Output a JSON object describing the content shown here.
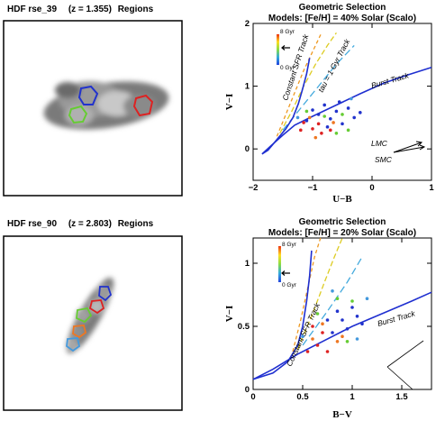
{
  "panels": [
    {
      "image_title_prefix": "HDF rse_39",
      "image_title_z": "(z = 1.355)",
      "image_title_suffix": "Regions",
      "chart_title": "Geometric Selection",
      "chart_subtitle": "Models: [Fe/H] = 40% Solar (Scalo)"
    },
    {
      "image_title_prefix": "HDF rse_90",
      "image_title_z": "(z = 2.803)",
      "image_title_suffix": "Regions",
      "chart_title": "Geometric Selection",
      "chart_subtitle": "Models: [Fe/H] = 20% Solar (Scalo)"
    }
  ],
  "colors": {
    "track": "#1f2fd0",
    "region_blue": "#2233cc",
    "region_red": "#dd2222",
    "region_green": "#66cc33",
    "region_orange": "#ee7722",
    "region_lightblue": "#4499dd"
  },
  "chart_data": [
    {
      "type": "scatter",
      "title": "Geometric Selection",
      "subtitle": "Models: [Fe/H] = 40% Solar (Scalo)",
      "xlabel": "U−B",
      "ylabel": "V−I",
      "xlim": [
        -2,
        1
      ],
      "ylim": [
        -0.5,
        2
      ],
      "xticks": [
        -2,
        -1,
        0,
        1
      ],
      "xtick_labels": [
        "−2",
        "−1",
        "0",
        "1"
      ],
      "yticks": [
        0,
        1,
        2
      ],
      "ytick_labels": [
        "0",
        "1",
        "2"
      ],
      "colorbar": {
        "top": "8 Gyr",
        "bottom": "0 Gyr"
      },
      "annotations": {
        "constant_sfr": "Constant SFR Track",
        "tau": "tau = 1 Gyr Track",
        "burst": "Burst Track",
        "lmc": "LMC",
        "smc": "SMC"
      },
      "burst_track": [
        [
          -1.85,
          -0.08
        ],
        [
          -1.7,
          0.05
        ],
        [
          -1.5,
          0.22
        ],
        [
          -1.3,
          0.38
        ],
        [
          -1.0,
          0.52
        ],
        [
          -0.6,
          0.7
        ],
        [
          -0.2,
          0.88
        ],
        [
          0.2,
          1.05
        ],
        [
          0.6,
          1.18
        ],
        [
          1.0,
          1.3
        ]
      ],
      "constant_sfr_track": [
        [
          -1.85,
          -0.08
        ],
        [
          -1.75,
          -0.02
        ],
        [
          -1.6,
          0.15
        ],
        [
          -1.45,
          0.32
        ],
        [
          -1.33,
          0.5
        ],
        [
          -1.24,
          0.72
        ],
        [
          -1.17,
          0.95
        ],
        [
          -1.1,
          1.2
        ],
        [
          -1.05,
          1.45
        ]
      ],
      "tau_tracks": [
        [
          [
            -1.6,
            0.2
          ],
          [
            -1.45,
            0.55
          ],
          [
            -1.3,
            0.9
          ],
          [
            -1.15,
            1.25
          ],
          [
            -1.0,
            1.55
          ],
          [
            -0.85,
            1.85
          ]
        ],
        [
          [
            -1.55,
            0.25
          ],
          [
            -1.35,
            0.6
          ],
          [
            -1.15,
            1.0
          ],
          [
            -0.95,
            1.35
          ],
          [
            -0.75,
            1.65
          ],
          [
            -0.6,
            1.85
          ]
        ],
        [
          [
            -1.5,
            0.3
          ],
          [
            -1.2,
            0.65
          ],
          [
            -0.9,
            1.0
          ],
          [
            -0.6,
            1.35
          ],
          [
            -0.3,
            1.65
          ]
        ]
      ],
      "points": [
        {
          "x": -1.0,
          "y": 0.62,
          "c": "#2233cc"
        },
        {
          "x": -0.9,
          "y": 0.55,
          "c": "#2233cc"
        },
        {
          "x": -0.8,
          "y": 0.7,
          "c": "#2233cc"
        },
        {
          "x": -0.7,
          "y": 0.48,
          "c": "#2233cc"
        },
        {
          "x": -0.6,
          "y": 0.6,
          "c": "#2233cc"
        },
        {
          "x": -0.5,
          "y": 0.4,
          "c": "#2233cc"
        },
        {
          "x": -0.4,
          "y": 0.65,
          "c": "#2233cc"
        },
        {
          "x": -0.3,
          "y": 0.5,
          "c": "#2233cc"
        },
        {
          "x": -0.2,
          "y": 0.58,
          "c": "#2233cc"
        },
        {
          "x": -1.1,
          "y": 0.45,
          "c": "#2233cc"
        },
        {
          "x": -0.75,
          "y": 0.35,
          "c": "#2233cc"
        },
        {
          "x": -0.55,
          "y": 0.75,
          "c": "#2233cc"
        },
        {
          "x": -1.15,
          "y": 0.42,
          "c": "#dd2222"
        },
        {
          "x": -1.0,
          "y": 0.32,
          "c": "#dd2222"
        },
        {
          "x": -0.9,
          "y": 0.4,
          "c": "#dd2222"
        },
        {
          "x": -0.85,
          "y": 0.25,
          "c": "#dd2222"
        },
        {
          "x": -1.2,
          "y": 0.3,
          "c": "#dd2222"
        },
        {
          "x": -0.7,
          "y": 0.3,
          "c": "#dd2222"
        },
        {
          "x": -0.95,
          "y": 0.18,
          "c": "#ee7722"
        },
        {
          "x": -1.05,
          "y": 0.5,
          "c": "#ee7722"
        },
        {
          "x": -0.65,
          "y": 0.42,
          "c": "#ee7722"
        },
        {
          "x": -1.1,
          "y": 0.6,
          "c": "#66cc33"
        },
        {
          "x": -0.8,
          "y": 0.52,
          "c": "#66cc33"
        },
        {
          "x": -0.6,
          "y": 0.25,
          "c": "#66cc33"
        },
        {
          "x": -0.4,
          "y": 0.3,
          "c": "#66cc33"
        },
        {
          "x": -0.5,
          "y": 0.55,
          "c": "#66cc33"
        },
        {
          "x": -1.25,
          "y": 0.5,
          "c": "#4499dd"
        },
        {
          "x": -0.35,
          "y": 0.8,
          "c": "#4499dd"
        }
      ]
    },
    {
      "type": "scatter",
      "title": "Geometric Selection",
      "subtitle": "Models: [Fe/H] = 20% Solar (Scalo)",
      "xlabel": "B−V",
      "ylabel": "V−I",
      "xlim": [
        0,
        1.8
      ],
      "ylim": [
        0,
        1.2
      ],
      "xticks": [
        0,
        0.5,
        1,
        1.5
      ],
      "xtick_labels": [
        "0",
        "0.5",
        "1",
        "1.5"
      ],
      "yticks": [
        0,
        0.5,
        1
      ],
      "ytick_labels": [
        "0",
        "0.5",
        "1"
      ],
      "colorbar": {
        "top": "8 Gyr",
        "bottom": "0 Gyr"
      },
      "annotations": {
        "constant_sfr": "Constant SFR Track",
        "burst": "Burst Track"
      },
      "burst_track": [
        [
          0.0,
          0.08
        ],
        [
          0.2,
          0.16
        ],
        [
          0.45,
          0.28
        ],
        [
          0.7,
          0.38
        ],
        [
          1.0,
          0.5
        ],
        [
          1.3,
          0.6
        ],
        [
          1.6,
          0.7
        ],
        [
          1.8,
          0.77
        ]
      ],
      "constant_sfr_track": [
        [
          0.0,
          0.08
        ],
        [
          0.2,
          0.13
        ],
        [
          0.35,
          0.22
        ],
        [
          0.45,
          0.35
        ],
        [
          0.5,
          0.5
        ],
        [
          0.54,
          0.7
        ],
        [
          0.57,
          0.9
        ],
        [
          0.59,
          1.1
        ]
      ],
      "tau_tracks": [
        [
          [
            0.4,
            0.3
          ],
          [
            0.48,
            0.55
          ],
          [
            0.55,
            0.8
          ],
          [
            0.62,
            1.05
          ],
          [
            0.68,
            1.2
          ]
        ],
        [
          [
            0.45,
            0.32
          ],
          [
            0.6,
            0.6
          ],
          [
            0.72,
            0.85
          ],
          [
            0.82,
            1.05
          ],
          [
            0.9,
            1.2
          ]
        ],
        [
          [
            0.5,
            0.35
          ],
          [
            0.75,
            0.62
          ],
          [
            0.95,
            0.85
          ],
          [
            1.1,
            1.05
          ]
        ]
      ],
      "points": [
        {
          "x": 0.85,
          "y": 0.62,
          "c": "#2233cc"
        },
        {
          "x": 0.9,
          "y": 0.55,
          "c": "#2233cc"
        },
        {
          "x": 0.95,
          "y": 0.48,
          "c": "#2233cc"
        },
        {
          "x": 1.0,
          "y": 0.65,
          "c": "#2233cc"
        },
        {
          "x": 1.05,
          "y": 0.58,
          "c": "#2233cc"
        },
        {
          "x": 0.8,
          "y": 0.45,
          "c": "#2233cc"
        },
        {
          "x": 0.75,
          "y": 0.55,
          "c": "#2233cc"
        },
        {
          "x": 1.1,
          "y": 0.52,
          "c": "#2233cc"
        },
        {
          "x": 0.65,
          "y": 0.35,
          "c": "#dd2222"
        },
        {
          "x": 0.7,
          "y": 0.45,
          "c": "#dd2222"
        },
        {
          "x": 0.6,
          "y": 0.5,
          "c": "#dd2222"
        },
        {
          "x": 0.75,
          "y": 0.3,
          "c": "#dd2222"
        },
        {
          "x": 0.55,
          "y": 0.3,
          "c": "#dd2222"
        },
        {
          "x": 0.85,
          "y": 0.38,
          "c": "#ee7722"
        },
        {
          "x": 0.6,
          "y": 0.4,
          "c": "#ee7722"
        },
        {
          "x": 0.7,
          "y": 0.52,
          "c": "#ee7722"
        },
        {
          "x": 0.9,
          "y": 0.42,
          "c": "#ee7722"
        },
        {
          "x": 1.0,
          "y": 0.7,
          "c": "#66cc33"
        },
        {
          "x": 0.85,
          "y": 0.72,
          "c": "#66cc33"
        },
        {
          "x": 0.95,
          "y": 0.38,
          "c": "#66cc33"
        },
        {
          "x": 0.65,
          "y": 0.6,
          "c": "#66cc33"
        },
        {
          "x": 1.15,
          "y": 0.72,
          "c": "#4499dd"
        },
        {
          "x": 0.8,
          "y": 0.78,
          "c": "#4499dd"
        },
        {
          "x": 1.05,
          "y": 0.4,
          "c": "#4499dd"
        },
        {
          "x": 0.5,
          "y": 0.42,
          "c": "#4499dd"
        }
      ]
    }
  ]
}
